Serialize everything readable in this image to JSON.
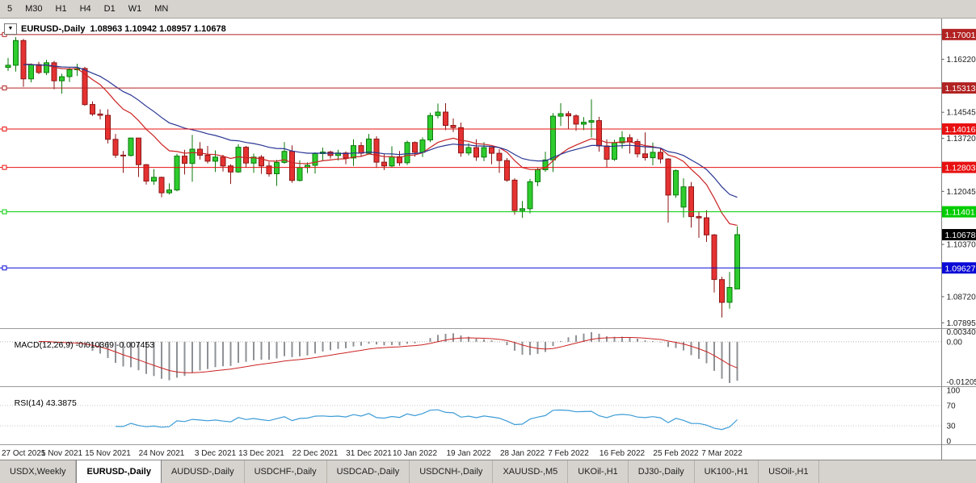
{
  "toolbar": {
    "timeframes": [
      "5",
      "M30",
      "H1",
      "H4",
      "D1",
      "W1",
      "MN"
    ]
  },
  "chart": {
    "symbol_period": "EURUSD-,Daily",
    "ohlc_text": "1.08963 1.10942 1.08957 1.10678",
    "dropdown_icon": "▼"
  },
  "current_price": {
    "text": "1.10678",
    "value": 1.10678,
    "bg": "#000000",
    "fg": "#ffffff"
  },
  "levels": [
    {
      "text": "1.17001",
      "value": 1.17001,
      "color": "#b22222"
    },
    {
      "text": "1.15313",
      "value": 1.15313,
      "color": "#b22222"
    },
    {
      "text": "1.14016",
      "value": 1.14016,
      "color": "#e81010"
    },
    {
      "text": "1.12803",
      "value": 1.12803,
      "color": "#e81010"
    },
    {
      "text": "1.11401",
      "value": 1.11401,
      "color": "#00cc00"
    },
    {
      "text": "1.09627",
      "value": 1.09627,
      "color": "#0a0ad6"
    }
  ],
  "y_axis": [
    {
      "text": "1.16220",
      "value": 1.1622
    },
    {
      "text": "1.14545",
      "value": 1.14545
    },
    {
      "text": "1.13720",
      "value": 1.1372
    },
    {
      "text": "1.12045",
      "value": 1.12045
    },
    {
      "text": "1.10370",
      "value": 1.1037
    },
    {
      "text": "1.08720",
      "value": 1.0872
    },
    {
      "text": "1.07895",
      "value": 1.07895
    }
  ],
  "x_axis": [
    {
      "text": "27 Oct 2021",
      "i": 0
    },
    {
      "text": "5 Nov 2021",
      "i": 7
    },
    {
      "text": "15 Nov 2021",
      "i": 13
    },
    {
      "text": "24 Nov 2021",
      "i": 20
    },
    {
      "text": "3 Dec 2021",
      "i": 27
    },
    {
      "text": "13 Dec 2021",
      "i": 33
    },
    {
      "text": "22 Dec 2021",
      "i": 40
    },
    {
      "text": "31 Dec 2021",
      "i": 47
    },
    {
      "text": "10 Jan 2022",
      "i": 53
    },
    {
      "text": "19 Jan 2022",
      "i": 60
    },
    {
      "text": "28 Jan 2022",
      "i": 67
    },
    {
      "text": "7 Feb 2022",
      "i": 73
    },
    {
      "text": "16 Feb 2022",
      "i": 80
    },
    {
      "text": "25 Feb 2022",
      "i": 87
    },
    {
      "text": "7 Mar 2022",
      "i": 93
    }
  ],
  "indicators": {
    "macd": {
      "name": "MACD(12,26,9)",
      "values": "-0.010369 -0.007453",
      "axis_max": "0.003408",
      "axis_zero": "0.00",
      "axis_min": "-0.012054",
      "fast": 12,
      "slow": 26,
      "signal": 9,
      "hist_color": "#8e9196",
      "signal_color": "#cc2222"
    },
    "rsi": {
      "name": "RSI(14)",
      "value": "43.3875",
      "period": 14,
      "axis": [
        {
          "text": "100",
          "v": 100
        },
        {
          "text": "70",
          "v": 70
        },
        {
          "text": "30",
          "v": 30
        },
        {
          "text": "0",
          "v": 0
        }
      ],
      "level_lines": [
        70,
        30
      ],
      "line_color": "#3c9cd7"
    }
  },
  "chart_data": {
    "type": "candlestick",
    "symbol": "EURUSD-",
    "period": "Daily",
    "colors": {
      "up": "#2ecc2e",
      "up_border": "#0b7a0b",
      "down": "#e63232",
      "down_border": "#8c1616",
      "background": "#ffffff"
    },
    "moving_averages": [
      {
        "type": "ema",
        "period": 13,
        "color": "#cc2222"
      },
      {
        "type": "ema",
        "period": 26,
        "color": "#283593"
      }
    ],
    "ohlc": [
      [
        1.1596,
        1.1626,
        1.1585,
        1.1603
      ],
      [
        1.1603,
        1.1692,
        1.1583,
        1.1681
      ],
      [
        1.1681,
        1.1686,
        1.1535,
        1.156
      ],
      [
        1.156,
        1.1609,
        1.1549,
        1.1605
      ],
      [
        1.1605,
        1.1614,
        1.1575,
        1.158
      ],
      [
        1.158,
        1.162,
        1.1572,
        1.1611
      ],
      [
        1.1611,
        1.1617,
        1.1527,
        1.1554
      ],
      [
        1.1554,
        1.1576,
        1.1513,
        1.1567
      ],
      [
        1.1567,
        1.1596,
        1.155,
        1.1589
      ],
      [
        1.1589,
        1.1608,
        1.1569,
        1.1593
      ],
      [
        1.1593,
        1.1598,
        1.1475,
        1.1479
      ],
      [
        1.1479,
        1.1489,
        1.1443,
        1.1449
      ],
      [
        1.1449,
        1.1464,
        1.1432,
        1.1445
      ],
      [
        1.1445,
        1.1464,
        1.1356,
        1.1369
      ],
      [
        1.1369,
        1.1386,
        1.131,
        1.1319
      ],
      [
        1.1319,
        1.1332,
        1.1263,
        1.1318
      ],
      [
        1.1318,
        1.1374,
        1.1315,
        1.1373
      ],
      [
        1.1373,
        1.1374,
        1.125,
        1.1289
      ],
      [
        1.1289,
        1.1291,
        1.1226,
        1.1237
      ],
      [
        1.1237,
        1.1275,
        1.1225,
        1.1249
      ],
      [
        1.1249,
        1.1251,
        1.1186,
        1.12
      ],
      [
        1.12,
        1.123,
        1.1195,
        1.1209
      ],
      [
        1.1209,
        1.1323,
        1.1205,
        1.1316
      ],
      [
        1.1316,
        1.1336,
        1.1258,
        1.1293
      ],
      [
        1.1293,
        1.1383,
        1.1235,
        1.1338
      ],
      [
        1.1338,
        1.136,
        1.1305,
        1.1319
      ],
      [
        1.1319,
        1.1348,
        1.1293,
        1.13
      ],
      [
        1.13,
        1.1334,
        1.1266,
        1.1313
      ],
      [
        1.1313,
        1.132,
        1.1267,
        1.1285
      ],
      [
        1.1285,
        1.129,
        1.1228,
        1.1266
      ],
      [
        1.1266,
        1.1354,
        1.1263,
        1.1344
      ],
      [
        1.1344,
        1.1348,
        1.128,
        1.1294
      ],
      [
        1.1294,
        1.1324,
        1.1263,
        1.1313
      ],
      [
        1.1313,
        1.1319,
        1.126,
        1.1285
      ],
      [
        1.1285,
        1.1298,
        1.1251,
        1.126
      ],
      [
        1.126,
        1.1304,
        1.1222,
        1.1296
      ],
      [
        1.1296,
        1.136,
        1.1292,
        1.1331
      ],
      [
        1.1331,
        1.135,
        1.1232,
        1.1239
      ],
      [
        1.1239,
        1.1303,
        1.1236,
        1.128
      ],
      [
        1.128,
        1.1296,
        1.1262,
        1.1287
      ],
      [
        1.1287,
        1.1328,
        1.1261,
        1.1324
      ],
      [
        1.1324,
        1.1343,
        1.13,
        1.1329
      ],
      [
        1.1329,
        1.1333,
        1.1308,
        1.1318
      ],
      [
        1.1318,
        1.1336,
        1.1302,
        1.1326
      ],
      [
        1.1326,
        1.1331,
        1.129,
        1.131
      ],
      [
        1.131,
        1.1369,
        1.1285,
        1.1349
      ],
      [
        1.1349,
        1.136,
        1.1315,
        1.1325
      ],
      [
        1.1325,
        1.1386,
        1.1321,
        1.137
      ],
      [
        1.137,
        1.1379,
        1.1279,
        1.1297
      ],
      [
        1.1297,
        1.1323,
        1.1272,
        1.1285
      ],
      [
        1.1285,
        1.1347,
        1.128,
        1.1314
      ],
      [
        1.1314,
        1.1332,
        1.1285,
        1.1295
      ],
      [
        1.1295,
        1.1365,
        1.1288,
        1.1359
      ],
      [
        1.1359,
        1.1362,
        1.1314,
        1.1328
      ],
      [
        1.1328,
        1.1375,
        1.1313,
        1.1367
      ],
      [
        1.1367,
        1.1453,
        1.136,
        1.1444
      ],
      [
        1.1444,
        1.1482,
        1.1435,
        1.1455
      ],
      [
        1.1455,
        1.1483,
        1.1398,
        1.1413
      ],
      [
        1.1413,
        1.1435,
        1.1392,
        1.1406
      ],
      [
        1.1406,
        1.1422,
        1.1314,
        1.1326
      ],
      [
        1.1326,
        1.1357,
        1.1318,
        1.1343
      ],
      [
        1.1343,
        1.1369,
        1.1301,
        1.1313
      ],
      [
        1.1313,
        1.136,
        1.13,
        1.1343
      ],
      [
        1.1343,
        1.1344,
        1.129,
        1.1325
      ],
      [
        1.1325,
        1.1338,
        1.1263,
        1.1302
      ],
      [
        1.1302,
        1.131,
        1.1235,
        1.124
      ],
      [
        1.124,
        1.1246,
        1.1131,
        1.1144
      ],
      [
        1.1144,
        1.1174,
        1.1121,
        1.115
      ],
      [
        1.115,
        1.1244,
        1.1135,
        1.1235
      ],
      [
        1.1235,
        1.1279,
        1.1221,
        1.1273
      ],
      [
        1.1273,
        1.133,
        1.1266,
        1.1304
      ],
      [
        1.1304,
        1.1452,
        1.1266,
        1.1442
      ],
      [
        1.1442,
        1.1483,
        1.1411,
        1.145
      ],
      [
        1.145,
        1.1458,
        1.1401,
        1.1443
      ],
      [
        1.1443,
        1.1448,
        1.1396,
        1.1417
      ],
      [
        1.1417,
        1.1439,
        1.1398,
        1.1423
      ],
      [
        1.1423,
        1.1495,
        1.1375,
        1.1428
      ],
      [
        1.1428,
        1.144,
        1.133,
        1.1348
      ],
      [
        1.1348,
        1.1369,
        1.128,
        1.1306
      ],
      [
        1.1306,
        1.1368,
        1.1301,
        1.1358
      ],
      [
        1.1358,
        1.1395,
        1.134,
        1.1374
      ],
      [
        1.1374,
        1.1385,
        1.1324,
        1.1362
      ],
      [
        1.1362,
        1.137,
        1.1312,
        1.1323
      ],
      [
        1.1323,
        1.1391,
        1.1302,
        1.1311
      ],
      [
        1.1311,
        1.1359,
        1.1287,
        1.1328
      ],
      [
        1.1328,
        1.1342,
        1.1293,
        1.1307
      ],
      [
        1.1307,
        1.1309,
        1.1106,
        1.1193
      ],
      [
        1.1193,
        1.1274,
        1.1184,
        1.127
      ],
      [
        1.1155,
        1.1246,
        1.1122,
        1.1219
      ],
      [
        1.1219,
        1.1234,
        1.109,
        1.1125
      ],
      [
        1.1125,
        1.114,
        1.1058,
        1.1121
      ],
      [
        1.1121,
        1.1145,
        1.1045,
        1.1067
      ],
      [
        1.1067,
        1.107,
        1.0885,
        1.0926
      ],
      [
        1.0926,
        1.0935,
        1.0806,
        1.0854
      ],
      [
        1.0854,
        1.095,
        1.0834,
        1.0901
      ],
      [
        1.08963,
        1.10942,
        1.08957,
        1.10678
      ]
    ]
  },
  "tabs": [
    {
      "label": "USDX,Weekly",
      "active": false
    },
    {
      "label": "EURUSD-,Daily",
      "active": true
    },
    {
      "label": "AUDUSD-,Daily",
      "active": false
    },
    {
      "label": "USDCHF-,Daily",
      "active": false
    },
    {
      "label": "USDCAD-,Daily",
      "active": false
    },
    {
      "label": "USDCNH-,Daily",
      "active": false
    },
    {
      "label": "XAUUSD-,M5",
      "active": false
    },
    {
      "label": "UKOil-,H1",
      "active": false
    },
    {
      "label": "DJ30-,Daily",
      "active": false
    },
    {
      "label": "UK100-,H1",
      "active": false
    },
    {
      "label": "USOil-,H1",
      "active": false
    }
  ]
}
